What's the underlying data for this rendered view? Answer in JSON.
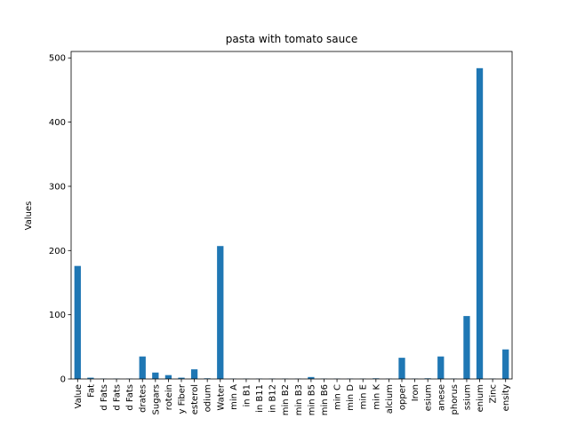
{
  "chart_data": {
    "type": "bar",
    "title": "pasta with tomato sauce",
    "xlabel": "",
    "ylabel": "Values",
    "ylim": [
      0,
      510
    ],
    "yticks": [
      0,
      100,
      200,
      300,
      400,
      500
    ],
    "grid": false,
    "legend": "none",
    "bar_color": "#1f77b4",
    "categories": [
      "Value",
      "Fat",
      "d Fats",
      "d Fats",
      "d Fats",
      "drates",
      "Sugars",
      "rotein",
      "y Fiber",
      "esterol",
      "odium",
      "Water",
      "min A",
      "in B1",
      "in B11",
      "in B12",
      "min B2",
      "min B3",
      "min B5",
      "min B6",
      "min C",
      "min D",
      "min E",
      "min K",
      "alcium",
      "opper",
      "Iron",
      "esium",
      "anese",
      "phorus",
      "ssium",
      "enium",
      "Zinc",
      "ensity"
    ],
    "values": [
      176,
      2,
      0.5,
      0.5,
      0.5,
      35,
      10,
      6,
      2,
      15,
      1,
      207,
      0.5,
      0.5,
      0.5,
      0.5,
      0.5,
      0.5,
      3,
      0.5,
      0.5,
      0.5,
      0.5,
      1,
      0.5,
      33,
      0.5,
      1,
      35,
      0.5,
      98,
      484,
      0.5,
      46
    ]
  }
}
